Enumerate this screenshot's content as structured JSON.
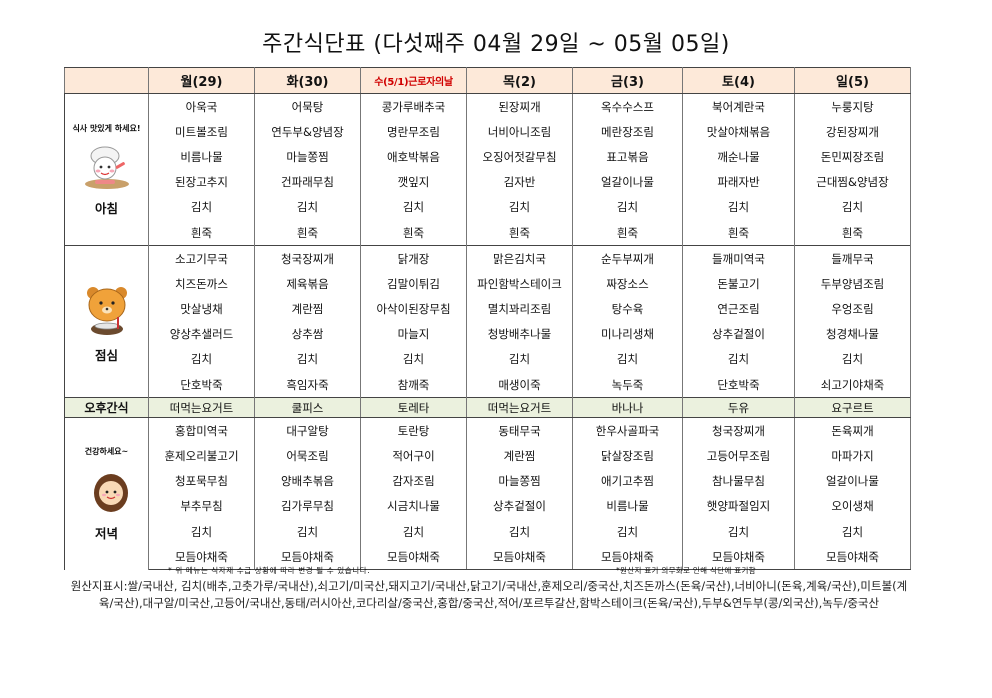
{
  "title": "주간식단표 (다섯째주 04월 29일 ~ 05월 05일)",
  "days": [
    "월(29)",
    "화(30)",
    "수(5/1)근로자의날",
    "목(2)",
    "금(3)",
    "토(4)",
    "일(5)"
  ],
  "breakfast": {
    "label": "아침",
    "caption": "식사 맛있게 하세요!",
    "rows": [
      [
        "아욱국",
        "어묵탕",
        "콩가루배추국",
        "된장찌개",
        "옥수수스프",
        "북어계란국",
        "누룽지탕"
      ],
      [
        "미트볼조림",
        "연두부&양념장",
        "명란무조림",
        "너비아니조림",
        "메란장조림",
        "맛살야채볶음",
        "강된장찌개"
      ],
      [
        "비름나물",
        "마늘쫑찜",
        "애호박볶음",
        "오징어젓갈무침",
        "표고볶음",
        "깨순나물",
        "돈민찌장조림"
      ],
      [
        "된장고추지",
        "건파래무침",
        "깻잎지",
        "김자반",
        "얼갈이나물",
        "파래자반",
        "근대찜&양념장"
      ],
      [
        "김치",
        "김치",
        "김치",
        "김치",
        "김치",
        "김치",
        "김치"
      ],
      [
        "흰죽",
        "흰죽",
        "흰죽",
        "흰죽",
        "흰죽",
        "흰죽",
        "흰죽"
      ]
    ]
  },
  "lunch": {
    "label": "점심",
    "rows": [
      [
        "소고기무국",
        "청국장찌개",
        "닭개장",
        "맑은김치국",
        "순두부찌개",
        "들깨미역국",
        "들깨무국"
      ],
      [
        "치즈돈까스",
        "제육볶음",
        "김말이튀김",
        "파인함박스테이크",
        "짜장소스",
        "돈불고기",
        "두부양념조림"
      ],
      [
        "맛살냉채",
        "계란찜",
        "아삭이된장무침",
        "멸치꽈리조림",
        "탕수육",
        "연근조림",
        "우엉조림"
      ],
      [
        "양상추샐러드",
        "상추쌈",
        "마늘지",
        "청방배추나물",
        "미나리생채",
        "상추겉절이",
        "청경채나물"
      ],
      [
        "김치",
        "김치",
        "김치",
        "김치",
        "김치",
        "김치",
        "김치"
      ],
      [
        "단호박죽",
        "흑임자죽",
        "참깨죽",
        "매생이죽",
        "녹두죽",
        "단호박죽",
        "쇠고기야채죽"
      ]
    ]
  },
  "snack": {
    "label": "오후간식",
    "items": [
      "떠먹는요거트",
      "쿨피스",
      "토레타",
      "떠먹는요거트",
      "바나나",
      "두유",
      "요구르트"
    ]
  },
  "dinner": {
    "label": "저녁",
    "caption": "건강하세요~",
    "rows": [
      [
        "홍합미역국",
        "대구알탕",
        "토란탕",
        "동태무국",
        "한우사골파국",
        "청국장찌개",
        "돈육찌개"
      ],
      [
        "훈제오리불고기",
        "어묵조림",
        "적어구이",
        "계란찜",
        "닭살장조림",
        "고등어무조림",
        "마파가지"
      ],
      [
        "청포묵무침",
        "양배추볶음",
        "감자조림",
        "마늘쫑찜",
        "애기고추찜",
        "참나물무침",
        "얼갈이나물"
      ],
      [
        "부추무침",
        "김가루무침",
        "시금치나물",
        "상추겉절이",
        "비름나물",
        "햇양파절임지",
        "오이생채"
      ],
      [
        "김치",
        "김치",
        "김치",
        "김치",
        "김치",
        "김치",
        "김치"
      ],
      [
        "모듬야채죽",
        "모듬야채죽",
        "모듬야채죽",
        "모듬야채죽",
        "모듬야채죽",
        "모듬야채죽",
        "모듬야채죽"
      ]
    ]
  },
  "notes": {
    "left": "* 위 메뉴는 식자재 수급 상황에 따라 변경 될 수 있습니다.",
    "right": "*원산지 표기 의무화로 인해 식단에 표기함",
    "origin": "원산지표시:쌀/국내산, 김치(배추,고춧가루/국내산),쇠고기/미국산,돼지고기/국내산,닭고기/국내산,훈제오리/중국산,치즈돈까스(돈육/국산),너비아니(돈육,계육/국산),미트볼(계육/국산),대구알/미국산,고등어/국내산,동태/러시아산,코다리살/중국산,홍합/중국산,적어/포르투갈산,함박스테이크(돈육/국산),두부&연두부(콩/외국산),녹두/중국산"
  },
  "icons": {
    "breakfast": "chef-character-icon",
    "lunch": "bear-eating-icon",
    "dinner": "girl-character-icon"
  },
  "colors": {
    "header_bg": "#fde9d9",
    "snack_bg": "#ebf1de",
    "holiday_text": "#d00000"
  }
}
